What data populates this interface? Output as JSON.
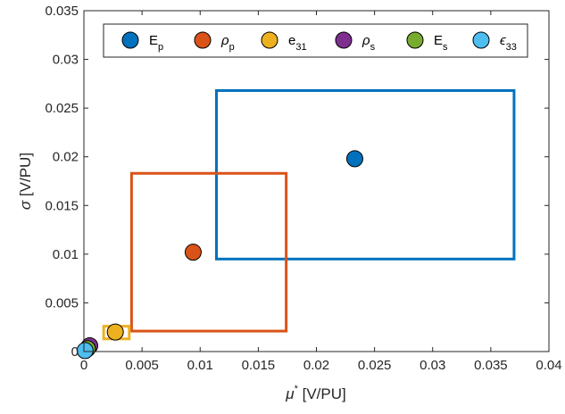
{
  "chart_data": {
    "type": "scatter",
    "xlabel": {
      "symbol": "μ",
      "sup": "*",
      "unit": " [V/PU]"
    },
    "ylabel": {
      "symbol": "σ",
      "unit": " [V/PU]"
    },
    "xlim": [
      0,
      0.04
    ],
    "ylim": [
      0,
      0.035
    ],
    "xticks": [
      0,
      0.005,
      0.01,
      0.015,
      0.02,
      0.025,
      0.03,
      0.035,
      0.04
    ],
    "xtick_labels": [
      "0",
      "0.005",
      "0.01",
      "0.015",
      "0.02",
      "0.025",
      "0.03",
      "0.035",
      "0.04"
    ],
    "yticks": [
      0,
      0.005,
      0.01,
      0.015,
      0.02,
      0.025,
      0.03,
      0.035
    ],
    "ytick_labels": [
      "0",
      "0.005",
      "0.01",
      "0.015",
      "0.02",
      "0.025",
      "0.03",
      "0.035"
    ],
    "grid": false,
    "legend_position": "top",
    "series": [
      {
        "name": "E",
        "sub": "p",
        "color": "#0072BD",
        "x": 0.0233,
        "y": 0.0198,
        "box": {
          "x0": 0.0114,
          "x1": 0.037,
          "y0": 0.0095,
          "y1": 0.0268
        }
      },
      {
        "name": "ρ",
        "sub": "p",
        "color": "#D95319",
        "x": 0.0094,
        "y": 0.0102,
        "box": {
          "x0": 0.0041,
          "x1": 0.0174,
          "y0": 0.0021,
          "y1": 0.0183
        }
      },
      {
        "name": "e",
        "sub": "31",
        "color": "#EDB120",
        "x": 0.0027,
        "y": 0.002,
        "box": {
          "x0": 0.0017,
          "x1": 0.0039,
          "y0": 0.0013,
          "y1": 0.0026
        }
      },
      {
        "name": "ρ",
        "sub": "s",
        "color": "#7E2F8E",
        "x": 0.0005,
        "y": 0.0006,
        "box": null
      },
      {
        "name": "E",
        "sub": "s",
        "color": "#77AC30",
        "x": 0.0003,
        "y": 0.0003,
        "box": null
      },
      {
        "name": "ϵ",
        "sub": "33",
        "color": "#4DBEEE",
        "x": 0.0001,
        "y": 0.0001,
        "box": null
      }
    ]
  }
}
